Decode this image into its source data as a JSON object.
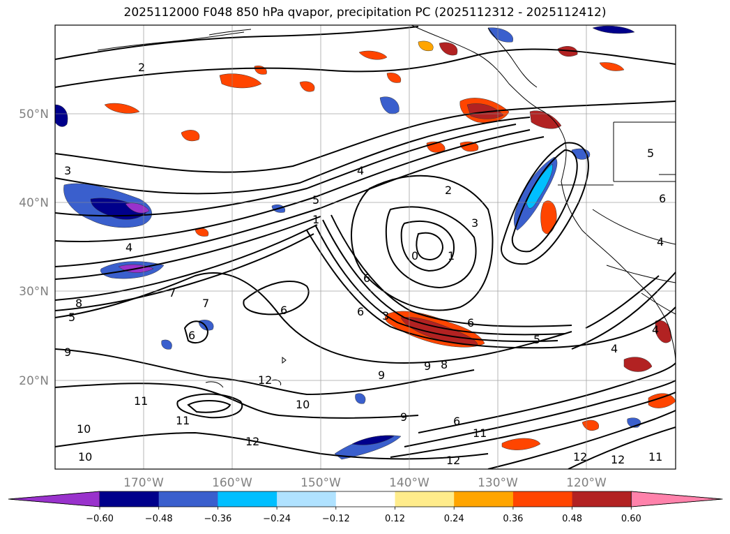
{
  "title": "2025112000 F048 850 hPa qvapor, precipitation PC (2025112312 - 2025112412)",
  "map": {
    "lat_labels": [
      "50°N",
      "40°N",
      "30°N",
      "20°N"
    ],
    "lon_labels": [
      "170°W",
      "160°W",
      "150°W",
      "140°W",
      "130°W",
      "120°W"
    ],
    "contour_labels": [
      "2",
      "3",
      "4",
      "5",
      "1",
      "2",
      "3",
      "0",
      "1",
      "6",
      "6",
      "7",
      "8",
      "6",
      "5",
      "9",
      "9",
      "9",
      "8",
      "11",
      "12",
      "10",
      "11",
      "12",
      "10",
      "9",
      "6",
      "11",
      "12",
      "12",
      "12",
      "11",
      "10",
      "4",
      "3",
      "4",
      "5",
      "6",
      "7",
      "6",
      "5",
      "4",
      "6",
      "4"
    ]
  },
  "colorbar": {
    "ticks": [
      "−0.60",
      "−0.48",
      "−0.36",
      "−0.24",
      "−0.12",
      "0.12",
      "0.24",
      "0.36",
      "0.48",
      "0.60"
    ],
    "colors": [
      "#9932cc",
      "#00008b",
      "#3a5fcd",
      "#00bfff",
      "#b0e2ff",
      "#ffffff",
      "#ffec8b",
      "#ffa500",
      "#ff4500",
      "#b22222",
      "#ff82ab"
    ]
  }
}
